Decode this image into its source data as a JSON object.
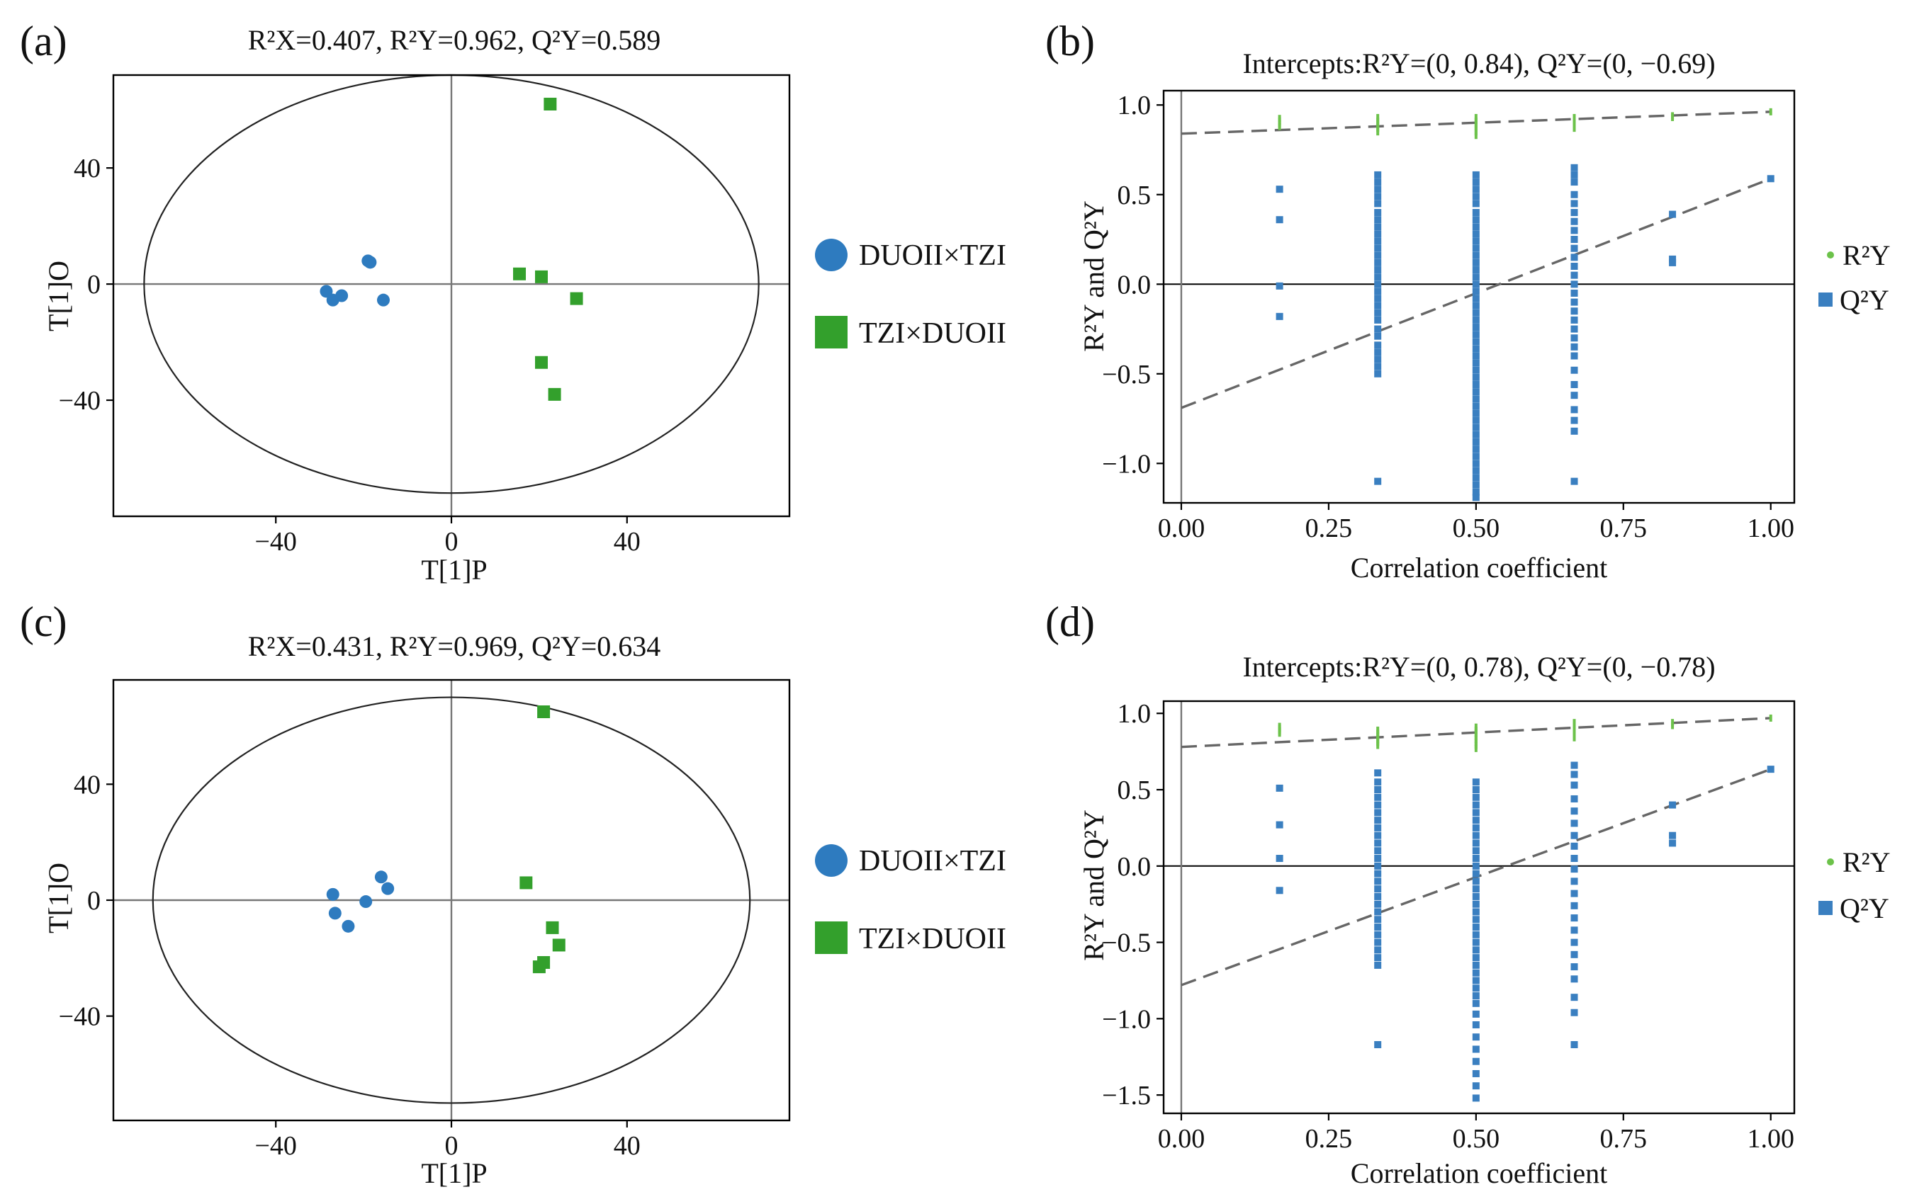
{
  "colors": {
    "group_a": "#2e7bbf",
    "group_b": "#33a02c",
    "r2y": "#6cc24a",
    "q2y": "#3a7fc0",
    "trend": "#666666"
  },
  "chart_data": [
    {
      "type": "scatter",
      "panel_label": "(a)",
      "title": "R²X=0.407, R²Y=0.962, Q²Y=0.589",
      "xlabel": "T[1]P",
      "ylabel": "T[1]O",
      "xlim": [
        -77,
        77
      ],
      "ylim": [
        -80,
        72
      ],
      "xticks": [
        -40,
        0,
        40
      ],
      "yticks": [
        -40,
        0,
        40
      ],
      "ellipse": {
        "rx": 70,
        "ry": 72
      },
      "legend": "right",
      "series": [
        {
          "name": "DUOII×TZI",
          "marker": "circle",
          "points": [
            [
              -28.5,
              -2.5
            ],
            [
              -27,
              -5.5
            ],
            [
              -25,
              -4
            ],
            [
              -19,
              8
            ],
            [
              -18.5,
              7.5
            ],
            [
              -15.5,
              -5.5
            ]
          ]
        },
        {
          "name": "TZI×DUOII",
          "marker": "square",
          "points": [
            [
              22.5,
              62
            ],
            [
              15.5,
              3.5
            ],
            [
              20.5,
              2.5
            ],
            [
              28.5,
              -5
            ],
            [
              20.5,
              -27
            ],
            [
              23.5,
              -38
            ]
          ]
        }
      ]
    },
    {
      "type": "scatter",
      "panel_label": "(b)",
      "title": "Intercepts:R²Y=(0, 0.84), Q²Y=(0, −0.69)",
      "xlabel": "Correlation coefficient",
      "ylabel": "R²Y and Q²Y",
      "xlim": [
        -0.03,
        1.04
      ],
      "ylim": [
        -1.22,
        1.08
      ],
      "xticks": [
        0.0,
        0.25,
        0.5,
        0.75,
        1.0
      ],
      "yticks": [
        -1.0,
        -0.5,
        0.0,
        0.5,
        1.0
      ],
      "legend": "right",
      "r2y_line": [
        [
          0,
          0.84
        ],
        [
          1,
          0.962
        ]
      ],
      "q2y_line": [
        [
          0,
          -0.69
        ],
        [
          1,
          0.589
        ]
      ],
      "series": [
        {
          "name": "R²Y",
          "marker": "dot",
          "columns": [
            {
              "x": 0.1667,
              "values": [
                0.88,
                0.895,
                0.91,
                0.925
              ]
            },
            {
              "x": 0.3333,
              "values": [
                0.85,
                0.87,
                0.89,
                0.91,
                0.93
              ]
            },
            {
              "x": 0.5,
              "values": [
                0.83,
                0.85,
                0.87,
                0.89,
                0.91,
                0.93
              ]
            },
            {
              "x": 0.6667,
              "values": [
                0.87,
                0.89,
                0.91,
                0.93
              ]
            },
            {
              "x": 0.8333,
              "values": [
                0.93,
                0.94
              ]
            },
            {
              "x": 1.0,
              "values": [
                0.962
              ]
            }
          ]
        },
        {
          "name": "Q²Y",
          "marker": "square",
          "columns": [
            {
              "x": 0.1667,
              "values": [
                0.53,
                0.36,
                -0.01,
                -0.18
              ]
            },
            {
              "x": 0.3333,
              "values": [
                0.61,
                0.57,
                0.53,
                0.49,
                0.45,
                0.4,
                0.36,
                0.32,
                0.28,
                0.24,
                0.2,
                0.16,
                0.12,
                0.08,
                0.04,
                0.0,
                -0.04,
                -0.08,
                -0.12,
                -0.16,
                -0.2,
                -0.25,
                -0.29,
                -0.34,
                -0.38,
                -0.42,
                -0.46,
                -0.5,
                -1.1
              ]
            },
            {
              "x": 0.5,
              "values": [
                0.61,
                0.57,
                0.53,
                0.49,
                0.45,
                0.4,
                0.36,
                0.32,
                0.28,
                0.24,
                0.2,
                0.16,
                0.12,
                0.08,
                0.04,
                0.0,
                -0.04,
                -0.08,
                -0.12,
                -0.16,
                -0.2,
                -0.24,
                -0.28,
                -0.32,
                -0.36,
                -0.4,
                -0.44,
                -0.48,
                -0.52,
                -0.56,
                -0.6,
                -0.64,
                -0.68,
                -0.72,
                -0.76,
                -0.8,
                -0.84,
                -0.88,
                -0.92,
                -0.96,
                -1.0,
                -1.04,
                -1.08,
                -1.12,
                -1.16,
                -1.19
              ]
            },
            {
              "x": 0.6667,
              "values": [
                0.65,
                0.61,
                0.57,
                0.5,
                0.45,
                0.4,
                0.35,
                0.3,
                0.25,
                0.2,
                0.15,
                0.1,
                0.05,
                0.0,
                -0.05,
                -0.1,
                -0.15,
                -0.2,
                -0.25,
                -0.3,
                -0.35,
                -0.4,
                -0.48,
                -0.56,
                -0.62,
                -0.7,
                -0.76,
                -0.82,
                -1.1
              ]
            },
            {
              "x": 0.8333,
              "values": [
                0.39,
                0.14,
                0.12
              ]
            },
            {
              "x": 1.0,
              "values": [
                0.589
              ]
            }
          ]
        }
      ]
    },
    {
      "type": "scatter",
      "panel_label": "(c)",
      "title": "R²X=0.431, R²Y=0.969, Q²Y=0.634",
      "xlabel": "T[1]P",
      "ylabel": "T[1]O",
      "xlim": [
        -77,
        77
      ],
      "ylim": [
        -76,
        76
      ],
      "xticks": [
        -40,
        0,
        40
      ],
      "yticks": [
        -40,
        0,
        40
      ],
      "ellipse": {
        "rx": 68,
        "ry": 70
      },
      "legend": "right",
      "series": [
        {
          "name": "DUOII×TZI",
          "marker": "circle",
          "points": [
            [
              -27,
              2
            ],
            [
              -26.5,
              -4.5
            ],
            [
              -23.5,
              -9
            ],
            [
              -19.5,
              -0.5
            ],
            [
              -16,
              8
            ],
            [
              -14.5,
              4
            ]
          ]
        },
        {
          "name": "TZI×DUOII",
          "marker": "square",
          "points": [
            [
              21,
              65
            ],
            [
              17,
              6
            ],
            [
              23,
              -9.5
            ],
            [
              24.5,
              -15.5
            ],
            [
              21,
              -21.5
            ],
            [
              20,
              -23
            ]
          ]
        }
      ]
    },
    {
      "type": "scatter",
      "panel_label": "(d)",
      "title": "Intercepts:R²Y=(0, 0.78), Q²Y=(0, −0.78)",
      "xlabel": "Correlation coefficient",
      "ylabel": "R²Y and Q²Y",
      "xlim": [
        -0.03,
        1.04
      ],
      "ylim": [
        -1.62,
        1.08
      ],
      "xticks": [
        0.0,
        0.25,
        0.5,
        0.75,
        1.0
      ],
      "yticks": [
        -1.5,
        -1.0,
        -0.5,
        0.0,
        0.5,
        1.0
      ],
      "legend": "right",
      "r2y_line": [
        [
          0,
          0.78
        ],
        [
          1,
          0.969
        ]
      ],
      "q2y_line": [
        [
          0,
          -0.78
        ],
        [
          1,
          0.634
        ]
      ],
      "series": [
        {
          "name": "R²Y",
          "marker": "dot",
          "columns": [
            {
              "x": 0.1667,
              "values": [
                0.87,
                0.885,
                0.9,
                0.915
              ]
            },
            {
              "x": 0.3333,
              "values": [
                0.79,
                0.81,
                0.83,
                0.85,
                0.87,
                0.89
              ]
            },
            {
              "x": 0.5,
              "values": [
                0.77,
                0.79,
                0.81,
                0.83,
                0.85,
                0.87,
                0.89,
                0.91
              ]
            },
            {
              "x": 0.6667,
              "values": [
                0.84,
                0.86,
                0.88,
                0.9,
                0.92,
                0.94
              ]
            },
            {
              "x": 0.8333,
              "values": [
                0.92,
                0.94
              ]
            },
            {
              "x": 1.0,
              "values": [
                0.969
              ]
            }
          ]
        },
        {
          "name": "Q²Y",
          "marker": "square",
          "columns": [
            {
              "x": 0.1667,
              "values": [
                0.51,
                0.27,
                0.05,
                -0.16
              ]
            },
            {
              "x": 0.3333,
              "values": [
                0.61,
                0.55,
                0.5,
                0.45,
                0.4,
                0.35,
                0.3,
                0.25,
                0.2,
                0.15,
                0.1,
                0.05,
                0.0,
                -0.05,
                -0.1,
                -0.15,
                -0.2,
                -0.25,
                -0.3,
                -0.35,
                -0.4,
                -0.45,
                -0.5,
                -0.55,
                -0.6,
                -0.65,
                -1.17
              ]
            },
            {
              "x": 0.5,
              "values": [
                0.55,
                0.5,
                0.45,
                0.4,
                0.35,
                0.3,
                0.25,
                0.2,
                0.15,
                0.1,
                0.05,
                0.0,
                -0.05,
                -0.1,
                -0.15,
                -0.2,
                -0.25,
                -0.3,
                -0.35,
                -0.4,
                -0.45,
                -0.5,
                -0.55,
                -0.6,
                -0.65,
                -0.7,
                -0.75,
                -0.8,
                -0.85,
                -0.9,
                -0.97,
                -1.04,
                -1.12,
                -1.2,
                -1.28,
                -1.36,
                -1.44,
                -1.52
              ]
            },
            {
              "x": 0.6667,
              "values": [
                0.66,
                0.6,
                0.53,
                0.44,
                0.36,
                0.28,
                0.2,
                0.13,
                0.05,
                -0.02,
                -0.1,
                -0.18,
                -0.26,
                -0.34,
                -0.42,
                -0.5,
                -0.58,
                -0.66,
                -0.74,
                -0.86,
                -0.96,
                -1.17
              ]
            },
            {
              "x": 0.8333,
              "values": [
                0.4,
                0.2,
                0.15
              ]
            },
            {
              "x": 1.0,
              "values": [
                0.634
              ]
            }
          ]
        }
      ]
    }
  ]
}
